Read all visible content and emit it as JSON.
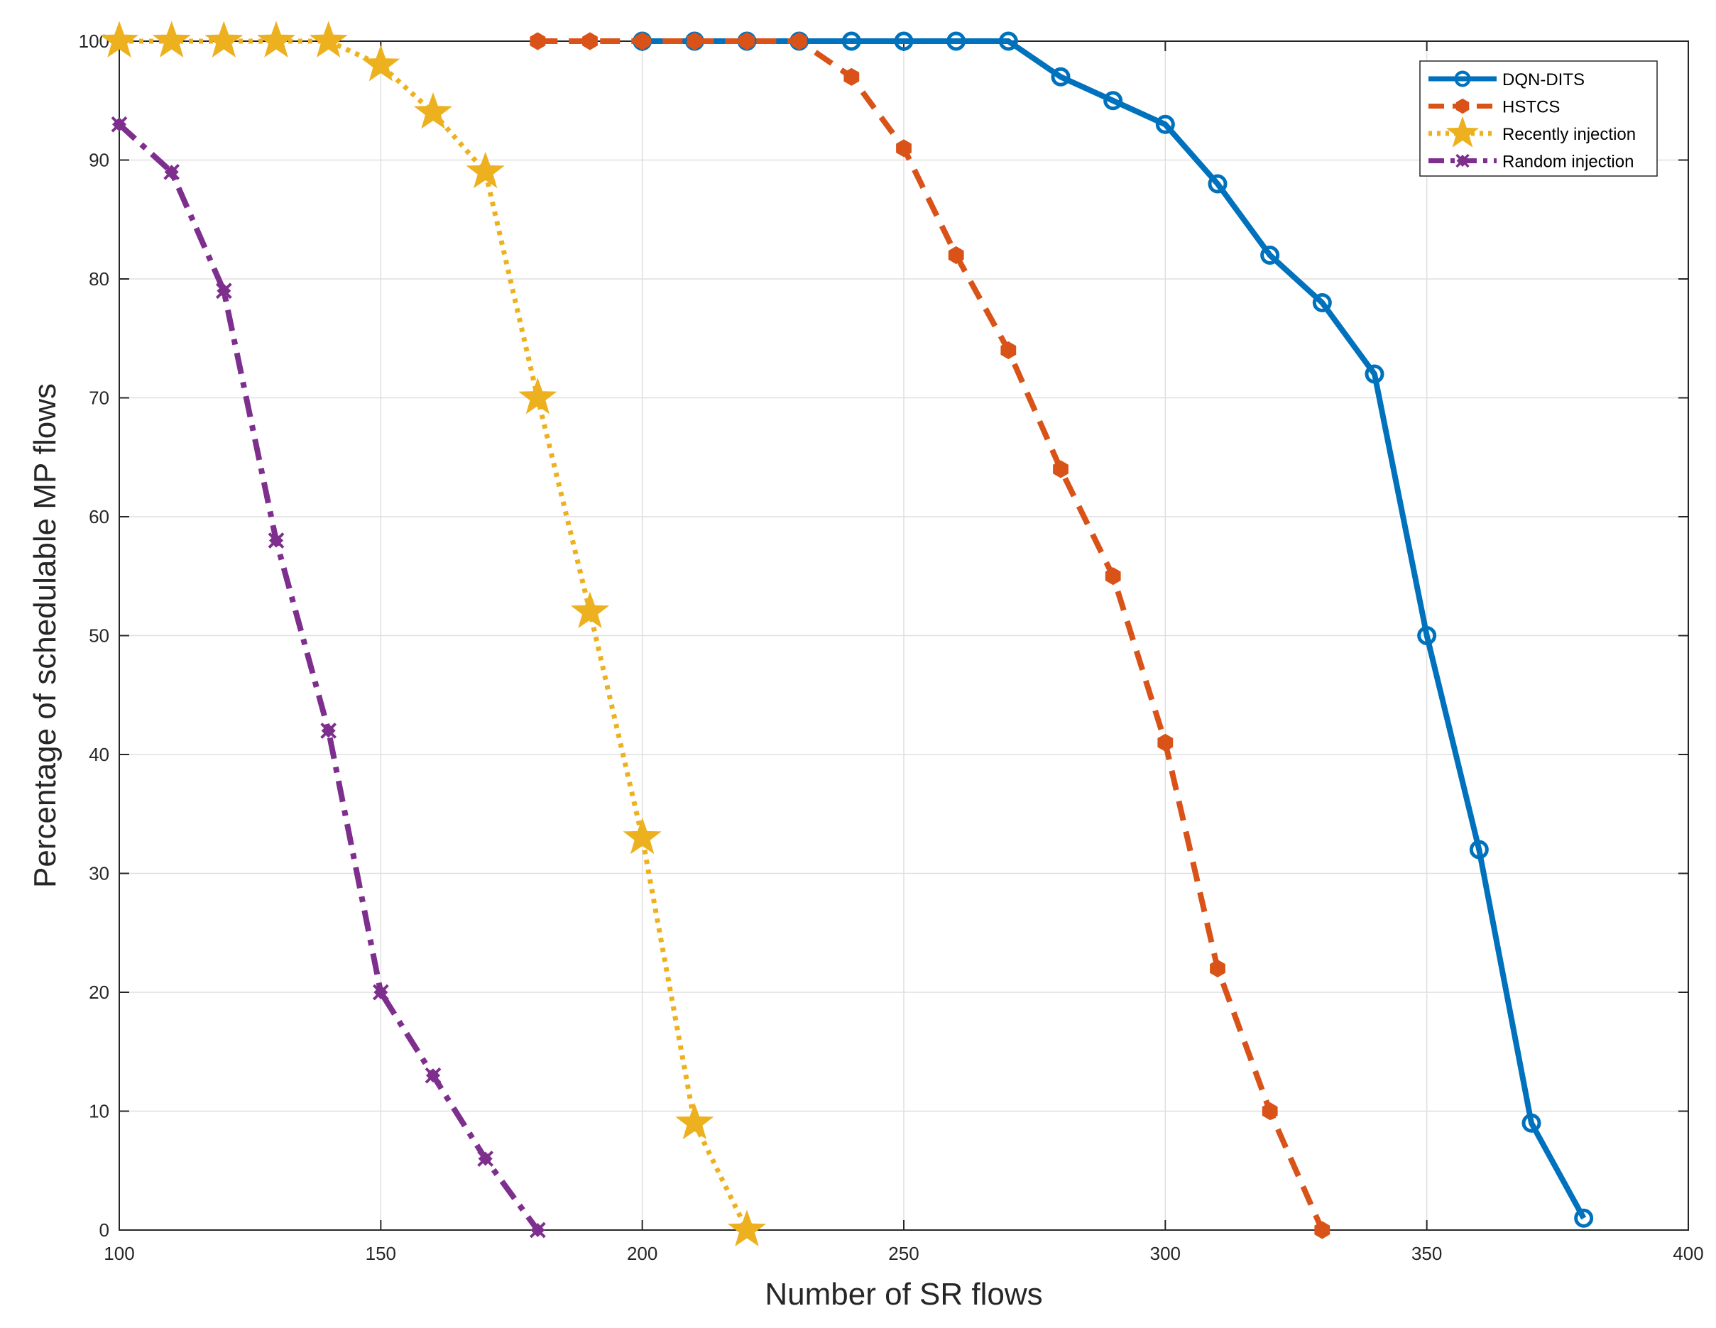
{
  "chart_data": {
    "type": "line",
    "title": "",
    "xlabel": "Number of SR flows",
    "ylabel": "Percentage of schedulable MP flows",
    "xlim": [
      100,
      400
    ],
    "ylim": [
      0,
      100
    ],
    "xticks": [
      100,
      150,
      200,
      250,
      300,
      350,
      400
    ],
    "yticks": [
      0,
      10,
      20,
      30,
      40,
      50,
      60,
      70,
      80,
      90,
      100
    ],
    "xtick_labels": [
      "100",
      "150",
      "200",
      "250",
      "300",
      "350",
      "400"
    ],
    "ytick_labels": [
      "0",
      "10",
      "20",
      "30",
      "40",
      "50",
      "60",
      "70",
      "80",
      "90",
      "100"
    ],
    "grid": true,
    "legend_position": "top-right",
    "series": [
      {
        "name": "DQN-DITS",
        "color": "#0072BD",
        "line_style": "solid",
        "marker": "circle",
        "x": [
          200,
          210,
          220,
          230,
          240,
          250,
          260,
          270,
          280,
          290,
          300,
          310,
          320,
          330,
          340,
          350,
          360,
          370,
          380
        ],
        "y": [
          100,
          100,
          100,
          100,
          100,
          100,
          100,
          100,
          97,
          95,
          93,
          88,
          82,
          78,
          72,
          50,
          32,
          9,
          1
        ]
      },
      {
        "name": "HSTCS",
        "color": "#D95319",
        "line_style": "dashed",
        "marker": "hexagon",
        "x": [
          180,
          190,
          200,
          210,
          220,
          230,
          240,
          250,
          260,
          270,
          280,
          290,
          300,
          310,
          320,
          330
        ],
        "y": [
          100,
          100,
          100,
          100,
          100,
          100,
          97,
          91,
          82,
          74,
          64,
          55,
          41,
          22,
          10,
          0
        ]
      },
      {
        "name": "Recently injection",
        "color": "#EDB120",
        "line_style": "dotted",
        "marker": "star",
        "x": [
          100,
          110,
          120,
          130,
          140,
          150,
          160,
          170,
          180,
          190,
          200,
          210,
          220
        ],
        "y": [
          100,
          100,
          100,
          100,
          100,
          98,
          94,
          89,
          70,
          52,
          33,
          9,
          0
        ]
      },
      {
        "name": "Random injection",
        "color": "#7E2F8E",
        "line_style": "dashdot",
        "marker": "x-diamond",
        "x": [
          100,
          110,
          120,
          130,
          140,
          150,
          160,
          170,
          180
        ],
        "y": [
          93,
          89,
          79,
          58,
          42,
          20,
          13,
          6,
          0
        ]
      }
    ]
  }
}
